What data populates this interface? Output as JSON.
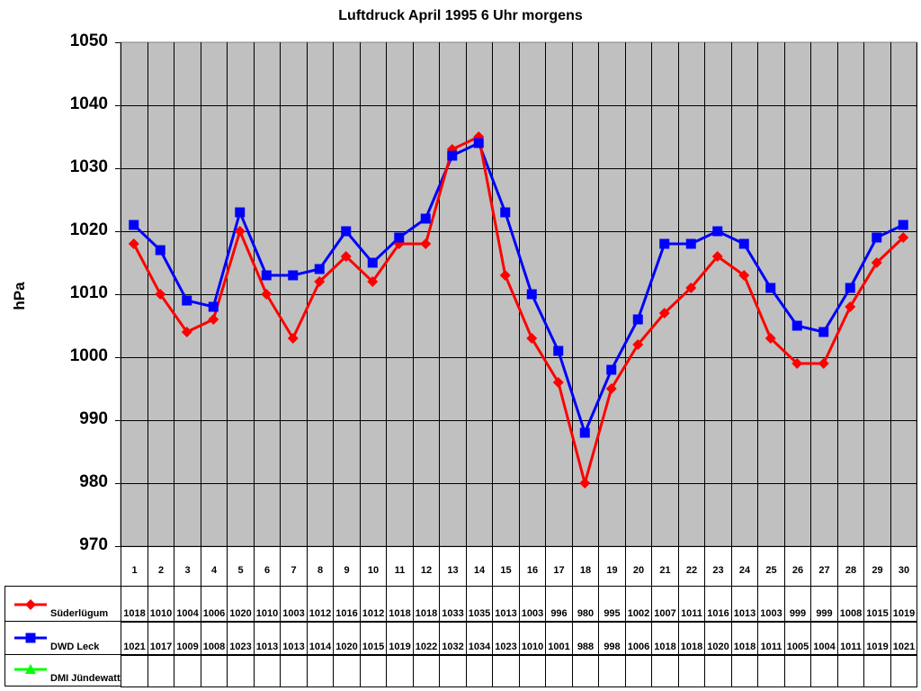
{
  "chart_data": {
    "type": "line",
    "title": "Luftdruck April 1995 6 Uhr morgens",
    "xlabel": "",
    "ylabel": "hPa",
    "ylim": [
      970,
      1050
    ],
    "yticks": [
      1050,
      1040,
      1030,
      1020,
      1010,
      1000,
      990,
      980,
      970
    ],
    "grid": true,
    "legend_position": "data-table-left",
    "categories": [
      "1",
      "2",
      "3",
      "4",
      "5",
      "6",
      "7",
      "8",
      "9",
      "10",
      "11",
      "12",
      "13",
      "14",
      "15",
      "16",
      "17",
      "18",
      "19",
      "20",
      "21",
      "22",
      "23",
      "24",
      "25",
      "26",
      "27",
      "28",
      "29",
      "30"
    ],
    "series": [
      {
        "name": "Süderlügum",
        "color": "#ff0000",
        "marker": "diamond",
        "values": [
          1018,
          1010,
          1004,
          1006,
          1020,
          1010,
          1003,
          1012,
          1016,
          1012,
          1018,
          1018,
          1033,
          1035,
          1013,
          1003,
          996,
          980,
          995,
          1002,
          1007,
          1011,
          1016,
          1013,
          1003,
          999,
          999,
          1008,
          1015,
          1019
        ]
      },
      {
        "name": "DWD Leck",
        "color": "#0000ff",
        "marker": "square",
        "values": [
          1021,
          1017,
          1009,
          1008,
          1023,
          1013,
          1013,
          1014,
          1020,
          1015,
          1019,
          1022,
          1032,
          1034,
          1023,
          1010,
          1001,
          988,
          998,
          1006,
          1018,
          1018,
          1020,
          1018,
          1011,
          1005,
          1004,
          1011,
          1019,
          1021
        ]
      },
      {
        "name": "DMI Jündewatt",
        "color": "#00ff00",
        "marker": "triangle",
        "values": []
      }
    ]
  },
  "colors": {
    "plot_background": "#c0c0c0",
    "gridline": "#000000"
  }
}
